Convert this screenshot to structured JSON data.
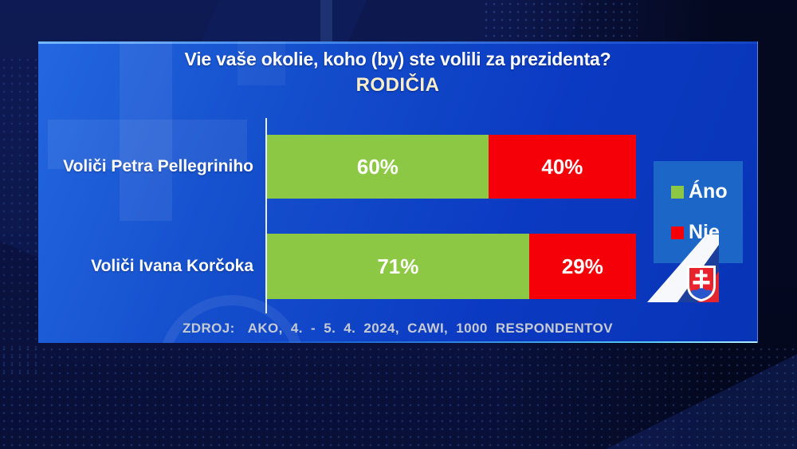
{
  "title": "Vie vaše okolie, koho (by) ste volili za prezidenta?",
  "subtitle": "RODIČIA",
  "source": {
    "label": "ZDROJ:",
    "text": "AKO, 4. - 5. 4. 2024, CAWI, 1000 RESPONDENTOV"
  },
  "colors": {
    "panel_blue": "#0d3cc2",
    "legend_box_blue": "#1b66c6",
    "ano_green": "#8cc844",
    "nie_red": "#f50008",
    "subtitle_cream": "#f9eec9",
    "source_gray": "#c6cad1",
    "background_navy": "#0a1240"
  },
  "chart_data": {
    "type": "bar",
    "orientation": "horizontal",
    "stacked": true,
    "unit": "%",
    "grid": false,
    "xlim": [
      0,
      100
    ],
    "legend_position": "right",
    "categories": [
      "Voliči Petra Pellegriniho",
      "Voliči Ivana Korčoka"
    ],
    "series": [
      {
        "name": "Áno",
        "color": "#8cc844",
        "values": [
          60,
          71
        ]
      },
      {
        "name": "Nie",
        "color": "#f50008",
        "values": [
          40,
          29
        ]
      }
    ],
    "labels": {
      "row0": {
        "ano": "60%",
        "nie": "40%"
      },
      "row1": {
        "ano": "71%",
        "nie": "29%"
      }
    }
  },
  "flag": {
    "name": "slovak-flag-corner-emblem"
  }
}
